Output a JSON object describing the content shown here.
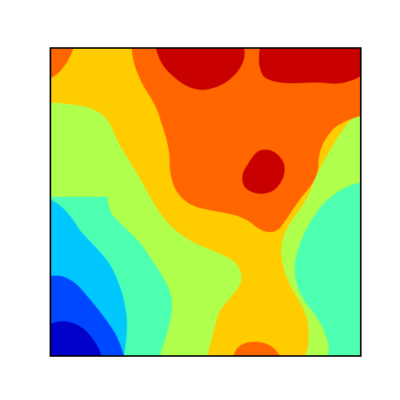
{
  "chart_data": {
    "type": "heatmap",
    "subtype": "filled-contour",
    "colormap": "jet",
    "title": "",
    "xlabel": "",
    "ylabel": "",
    "axis_ticks": "none",
    "grid": false,
    "legend": "none",
    "levels": [
      0,
      1,
      2,
      3,
      4,
      5,
      6,
      7
    ],
    "level_colors": [
      "#0000c8",
      "#0048ff",
      "#00c8ff",
      "#4dffb0",
      "#b0ff4d",
      "#ffcc00",
      "#ff6600",
      "#c80000"
    ],
    "frame_color": "#000000",
    "background": "#ffffff"
  }
}
